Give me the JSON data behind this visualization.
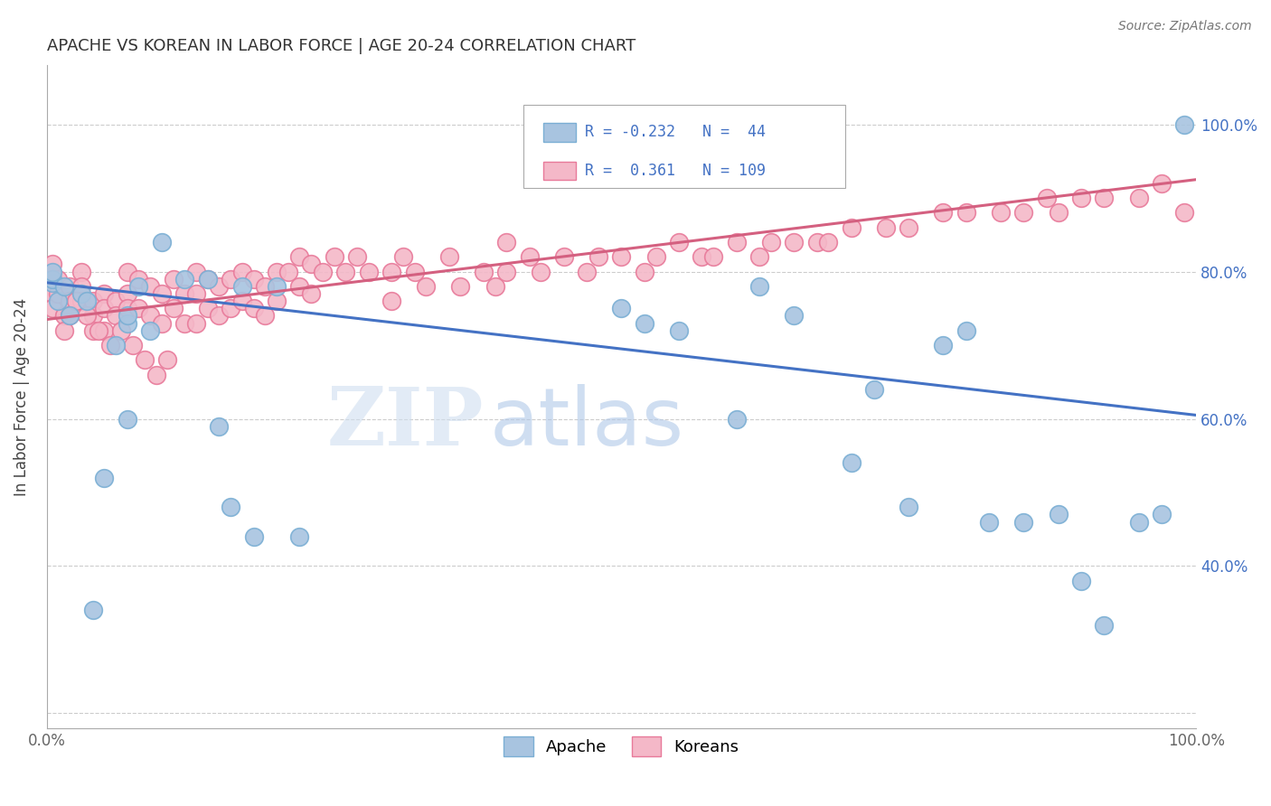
{
  "title": "APACHE VS KOREAN IN LABOR FORCE | AGE 20-24 CORRELATION CHART",
  "source_text": "Source: ZipAtlas.com",
  "ylabel": "In Labor Force | Age 20-24",
  "xlim": [
    0.0,
    1.0
  ],
  "ylim": [
    0.18,
    1.08
  ],
  "apache_color": "#a8c4e0",
  "apache_edge_color": "#7bafd4",
  "korean_color": "#f4b8c8",
  "korean_edge_color": "#e87a9a",
  "apache_R": -0.232,
  "apache_N": 44,
  "korean_R": 0.361,
  "korean_N": 109,
  "legend_apache_label": "Apache",
  "legend_korean_label": "Koreans",
  "watermark_zip": "ZIP",
  "watermark_atlas": "atlas",
  "apache_line_color": "#4472c4",
  "korean_line_color": "#d46080",
  "apache_line_x0": 0.0,
  "apache_line_y0": 0.785,
  "apache_line_x1": 1.0,
  "apache_line_y1": 0.605,
  "korean_line_x0": 0.0,
  "korean_line_y0": 0.735,
  "korean_line_x1": 1.0,
  "korean_line_y1": 0.925,
  "apache_scatter_x": [
    0.005,
    0.005,
    0.005,
    0.01,
    0.015,
    0.02,
    0.03,
    0.035,
    0.04,
    0.05,
    0.06,
    0.07,
    0.08,
    0.1,
    0.12,
    0.14,
    0.15,
    0.16,
    0.17,
    0.18,
    0.2,
    0.22,
    0.07,
    0.07,
    0.09,
    0.5,
    0.52,
    0.55,
    0.6,
    0.62,
    0.65,
    0.7,
    0.72,
    0.75,
    0.78,
    0.8,
    0.82,
    0.85,
    0.88,
    0.9,
    0.92,
    0.95,
    0.97,
    0.99
  ],
  "apache_scatter_y": [
    0.785,
    0.79,
    0.8,
    0.76,
    0.78,
    0.74,
    0.77,
    0.76,
    0.34,
    0.52,
    0.7,
    0.6,
    0.78,
    0.84,
    0.79,
    0.79,
    0.59,
    0.48,
    0.78,
    0.44,
    0.78,
    0.44,
    0.73,
    0.74,
    0.72,
    0.75,
    0.73,
    0.72,
    0.6,
    0.78,
    0.74,
    0.54,
    0.64,
    0.48,
    0.7,
    0.72,
    0.46,
    0.46,
    0.47,
    0.38,
    0.32,
    0.46,
    0.47,
    1.0
  ],
  "korean_scatter_x": [
    0.005,
    0.005,
    0.005,
    0.005,
    0.01,
    0.01,
    0.015,
    0.015,
    0.02,
    0.02,
    0.02,
    0.03,
    0.03,
    0.03,
    0.04,
    0.04,
    0.04,
    0.05,
    0.05,
    0.05,
    0.06,
    0.06,
    0.07,
    0.07,
    0.07,
    0.08,
    0.08,
    0.09,
    0.09,
    0.1,
    0.1,
    0.11,
    0.11,
    0.12,
    0.12,
    0.13,
    0.13,
    0.13,
    0.14,
    0.14,
    0.15,
    0.15,
    0.16,
    0.16,
    0.17,
    0.17,
    0.18,
    0.18,
    0.19,
    0.19,
    0.2,
    0.2,
    0.21,
    0.22,
    0.22,
    0.23,
    0.23,
    0.24,
    0.25,
    0.26,
    0.27,
    0.28,
    0.3,
    0.3,
    0.31,
    0.32,
    0.33,
    0.35,
    0.36,
    0.38,
    0.39,
    0.4,
    0.4,
    0.42,
    0.43,
    0.45,
    0.47,
    0.48,
    0.5,
    0.52,
    0.53,
    0.55,
    0.57,
    0.58,
    0.6,
    0.62,
    0.63,
    0.65,
    0.67,
    0.68,
    0.7,
    0.73,
    0.75,
    0.78,
    0.8,
    0.83,
    0.85,
    0.87,
    0.88,
    0.9,
    0.92,
    0.95,
    0.97,
    0.99,
    0.025,
    0.035,
    0.045,
    0.055,
    0.065,
    0.075,
    0.085,
    0.095,
    0.105
  ],
  "korean_scatter_y": [
    0.81,
    0.79,
    0.77,
    0.75,
    0.77,
    0.79,
    0.74,
    0.72,
    0.78,
    0.76,
    0.74,
    0.8,
    0.78,
    0.76,
    0.76,
    0.74,
    0.72,
    0.77,
    0.75,
    0.72,
    0.76,
    0.74,
    0.8,
    0.77,
    0.75,
    0.79,
    0.75,
    0.78,
    0.74,
    0.77,
    0.73,
    0.79,
    0.75,
    0.77,
    0.73,
    0.8,
    0.77,
    0.73,
    0.79,
    0.75,
    0.78,
    0.74,
    0.79,
    0.75,
    0.8,
    0.76,
    0.79,
    0.75,
    0.78,
    0.74,
    0.8,
    0.76,
    0.8,
    0.82,
    0.78,
    0.81,
    0.77,
    0.8,
    0.82,
    0.8,
    0.82,
    0.8,
    0.8,
    0.76,
    0.82,
    0.8,
    0.78,
    0.82,
    0.78,
    0.8,
    0.78,
    0.84,
    0.8,
    0.82,
    0.8,
    0.82,
    0.8,
    0.82,
    0.82,
    0.8,
    0.82,
    0.84,
    0.82,
    0.82,
    0.84,
    0.82,
    0.84,
    0.84,
    0.84,
    0.84,
    0.86,
    0.86,
    0.86,
    0.88,
    0.88,
    0.88,
    0.88,
    0.9,
    0.88,
    0.9,
    0.9,
    0.9,
    0.92,
    0.88,
    0.76,
    0.74,
    0.72,
    0.7,
    0.72,
    0.7,
    0.68,
    0.66,
    0.68
  ]
}
